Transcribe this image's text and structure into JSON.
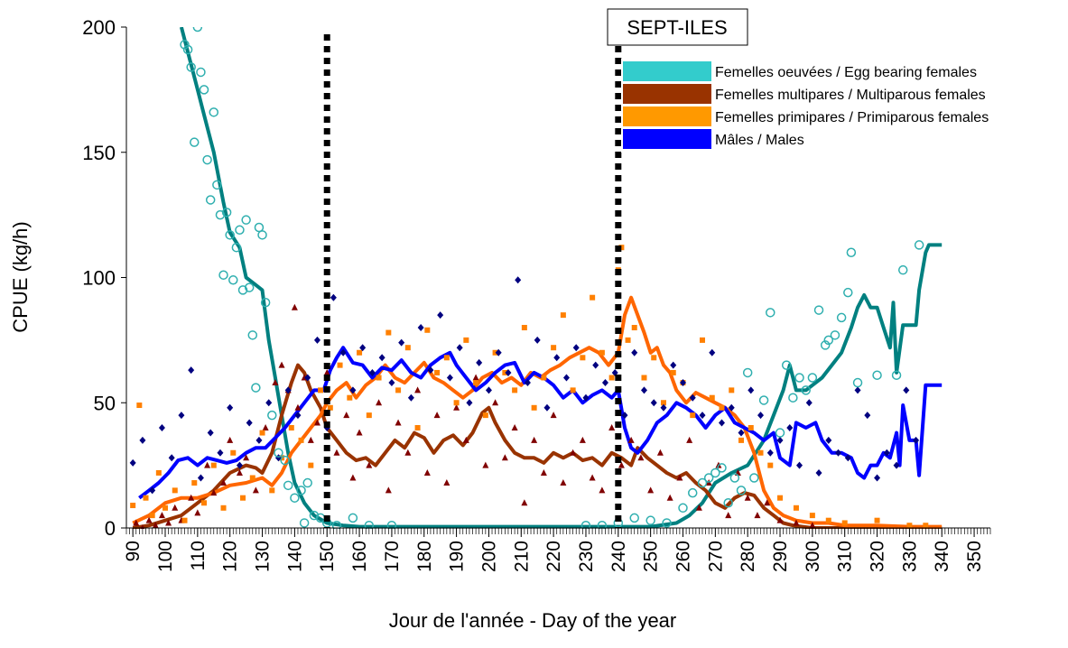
{
  "chart_data": {
    "type": "scatter",
    "title": "SEPT-ILES",
    "x_label": "Jour de l'année - Day of the year",
    "y_label": "CPUE (kg/h)",
    "xlim": [
      88,
      355
    ],
    "ylim": [
      0,
      200
    ],
    "xticks": [
      90,
      100,
      110,
      120,
      130,
      140,
      150,
      160,
      170,
      180,
      190,
      200,
      210,
      220,
      230,
      240,
      250,
      260,
      270,
      280,
      290,
      300,
      310,
      320,
      330,
      340,
      350
    ],
    "xminor": 1,
    "yticks": [
      0,
      50,
      100,
      150,
      200
    ],
    "vlines": [
      150,
      240
    ],
    "legend": "top right",
    "series": [
      {
        "name": "Femelles oeuvées / Egg bearing females",
        "color": "#33CCCC",
        "marker": "circle",
        "marker_color": "#2FAFAF",
        "line_color": "#008080",
        "x": [
          106,
          107,
          108,
          109,
          110,
          111,
          112,
          113,
          114,
          115,
          116,
          117,
          118,
          119,
          120,
          121,
          122,
          123,
          124,
          125,
          126,
          127,
          128,
          129,
          130,
          131,
          133,
          135,
          137,
          138,
          140,
          142,
          143,
          144,
          146,
          148,
          150,
          153,
          158,
          163,
          170,
          230,
          235,
          240,
          245,
          250,
          255,
          260,
          263,
          266,
          268,
          270,
          272,
          274,
          276,
          278,
          280,
          282,
          285,
          287,
          290,
          292,
          294,
          296,
          298,
          300,
          302,
          304,
          305,
          307,
          309,
          311,
          312,
          314,
          320,
          326,
          328,
          333
        ],
        "values": [
          193,
          191,
          184,
          154,
          200,
          182,
          175,
          147,
          131,
          166,
          137,
          125,
          101,
          126,
          117,
          99,
          112,
          119,
          95,
          123,
          96,
          77,
          56,
          120,
          117,
          90,
          45,
          30,
          27,
          17,
          12,
          15,
          2,
          18,
          5,
          4,
          2,
          1,
          4,
          1,
          1,
          1,
          1,
          2,
          4,
          3,
          2,
          8,
          14,
          18,
          20,
          22,
          24,
          10,
          20,
          15,
          62,
          20,
          51,
          86,
          38,
          65,
          52,
          60,
          55,
          60,
          87,
          73,
          75,
          77,
          84,
          94,
          110,
          58,
          61,
          61,
          103,
          113
        ],
        "line_x": [
          105,
          110,
          112,
          115,
          118,
          120,
          123,
          125,
          128,
          130,
          132,
          134,
          136,
          138,
          140,
          143,
          146,
          150,
          155,
          160,
          170,
          240,
          250,
          258,
          262,
          266,
          270,
          275,
          280,
          285,
          288,
          291,
          293,
          295,
          298,
          300,
          303,
          306,
          309,
          312,
          314,
          316,
          318,
          320,
          322,
          324,
          325,
          326,
          328,
          332,
          333,
          335,
          336,
          340
        ],
        "line_values": [
          200,
          175,
          165,
          150,
          130,
          118,
          112,
          100,
          97,
          95,
          75,
          60,
          45,
          30,
          18,
          10,
          5,
          2,
          1,
          0.5,
          0.5,
          0.5,
          0.5,
          2,
          5,
          10,
          18,
          22,
          25,
          35,
          45,
          55,
          65,
          55,
          55,
          57,
          60,
          65,
          70,
          80,
          88,
          93,
          88,
          88,
          80,
          72,
          90,
          62,
          81,
          81,
          95,
          110,
          113,
          113
        ]
      },
      {
        "name": "Femelles multipares / Multiparous females",
        "color": "#993300",
        "marker": "triangle",
        "marker_color": "#800000",
        "line_color": "#993300",
        "x": [
          91,
          93,
          95,
          97,
          99,
          101,
          103,
          105,
          108,
          110,
          113,
          115,
          118,
          120,
          123,
          125,
          128,
          131,
          134,
          136,
          138,
          140,
          141,
          143,
          145,
          147,
          150,
          153,
          156,
          158,
          160,
          163,
          166,
          169,
          172,
          175,
          178,
          181,
          184,
          187,
          190,
          193,
          196,
          199,
          202,
          205,
          208,
          211,
          214,
          217,
          220,
          223,
          226,
          229,
          232,
          235,
          238,
          241,
          244,
          247,
          250,
          253,
          256,
          259,
          262,
          265,
          268,
          271,
          274,
          277,
          280,
          283,
          286,
          290,
          295,
          300
        ],
        "values": [
          2,
          0,
          3,
          1,
          5,
          2,
          8,
          3,
          12,
          6,
          25,
          14,
          18,
          35,
          22,
          28,
          15,
          40,
          58,
          65,
          55,
          88,
          48,
          60,
          35,
          42,
          62,
          30,
          45,
          20,
          38,
          25,
          50,
          15,
          42,
          30,
          55,
          22,
          45,
          18,
          48,
          35,
          60,
          25,
          50,
          28,
          40,
          10,
          35,
          22,
          45,
          18,
          30,
          35,
          20,
          15,
          40,
          25,
          35,
          28,
          15,
          30,
          12,
          20,
          35,
          8,
          18,
          25,
          5,
          22,
          12,
          5,
          10,
          3,
          2,
          1
        ],
        "line_x": [
          90,
          95,
          100,
          105,
          110,
          115,
          120,
          125,
          128,
          130,
          133,
          136,
          139,
          141,
          143,
          145,
          148,
          150,
          153,
          156,
          159,
          162,
          165,
          168,
          171,
          174,
          177,
          180,
          183,
          186,
          189,
          192,
          195,
          198,
          200,
          202,
          205,
          208,
          211,
          214,
          217,
          220,
          223,
          226,
          229,
          232,
          235,
          238,
          241,
          244,
          246,
          249,
          252,
          255,
          258,
          261,
          264,
          267,
          270,
          273,
          276,
          279,
          282,
          285,
          288,
          291,
          294,
          300,
          310,
          320,
          330,
          340
        ],
        "line_values": [
          0,
          1,
          3,
          5,
          10,
          15,
          22,
          25,
          24,
          22,
          30,
          45,
          58,
          65,
          62,
          55,
          48,
          40,
          35,
          30,
          27,
          28,
          25,
          30,
          35,
          32,
          38,
          36,
          30,
          35,
          37,
          33,
          38,
          46,
          48,
          42,
          35,
          30,
          28,
          28,
          26,
          30,
          28,
          30,
          27,
          28,
          25,
          30,
          28,
          25,
          32,
          28,
          25,
          22,
          20,
          22,
          18,
          15,
          10,
          8,
          12,
          14,
          13,
          8,
          5,
          2,
          1,
          0,
          0,
          0,
          0,
          0
        ]
      },
      {
        "name": "Femelles primipares / Primiparous females",
        "color": "#FF9900",
        "marker": "square",
        "marker_color": "#FF8000",
        "line_color": "#FF6600",
        "x": [
          90,
          92,
          94,
          96,
          98,
          100,
          103,
          106,
          109,
          112,
          115,
          118,
          121,
          124,
          127,
          130,
          133,
          136,
          139,
          142,
          145,
          148,
          151,
          154,
          157,
          160,
          163,
          166,
          169,
          172,
          175,
          178,
          181,
          184,
          187,
          190,
          193,
          196,
          199,
          202,
          205,
          208,
          211,
          214,
          217,
          220,
          223,
          226,
          229,
          232,
          235,
          238,
          240,
          241,
          243,
          245,
          248,
          251,
          254,
          257,
          260,
          263,
          266,
          269,
          272,
          275,
          278,
          281,
          284,
          287,
          290,
          295,
          300,
          305,
          310,
          320,
          330,
          335
        ],
        "values": [
          9,
          49,
          12,
          5,
          22,
          8,
          15,
          3,
          18,
          10,
          25,
          8,
          30,
          12,
          20,
          38,
          15,
          28,
          40,
          35,
          25,
          55,
          48,
          65,
          52,
          70,
          45,
          60,
          78,
          55,
          72,
          40,
          79,
          62,
          68,
          50,
          75,
          58,
          45,
          70,
          62,
          55,
          80,
          48,
          60,
          72,
          85,
          55,
          68,
          92,
          70,
          60,
          103,
          112,
          75,
          80,
          60,
          68,
          50,
          62,
          58,
          45,
          75,
          52,
          48,
          55,
          35,
          40,
          30,
          25,
          12,
          8,
          5,
          3,
          2,
          3,
          1,
          1
        ],
        "line_x": [
          90,
          95,
          100,
          105,
          110,
          115,
          120,
          125,
          130,
          133,
          136,
          139,
          142,
          145,
          148,
          150,
          153,
          156,
          159,
          162,
          165,
          168,
          171,
          174,
          177,
          180,
          183,
          186,
          189,
          192,
          195,
          198,
          201,
          204,
          207,
          210,
          213,
          216,
          219,
          222,
          225,
          228,
          231,
          234,
          237,
          240,
          242,
          244,
          246,
          248,
          250,
          252,
          254,
          256,
          258,
          261,
          264,
          267,
          270,
          273,
          276,
          279,
          282,
          285,
          288,
          291,
          295,
          300,
          305,
          310,
          320,
          330,
          340
        ],
        "line_values": [
          2,
          5,
          10,
          12,
          12,
          14,
          17,
          18,
          20,
          17,
          22,
          30,
          35,
          40,
          45,
          50,
          55,
          58,
          52,
          57,
          60,
          65,
          60,
          58,
          62,
          66,
          60,
          58,
          55,
          52,
          55,
          60,
          62,
          58,
          60,
          57,
          62,
          60,
          63,
          65,
          68,
          70,
          72,
          70,
          65,
          70,
          85,
          92,
          85,
          78,
          70,
          72,
          65,
          62,
          55,
          50,
          54,
          52,
          50,
          48,
          45,
          40,
          30,
          15,
          8,
          5,
          3,
          2,
          2,
          1,
          1,
          0.5,
          0.5
        ]
      },
      {
        "name": "Mâles / Males",
        "color": "#0000FF",
        "marker": "diamond",
        "marker_color": "#000080",
        "line_color": "#0000FF",
        "x": [
          90,
          93,
          96,
          99,
          102,
          105,
          108,
          111,
          114,
          117,
          120,
          123,
          126,
          129,
          132,
          135,
          138,
          141,
          144,
          147,
          150,
          152,
          155,
          158,
          161,
          164,
          167,
          170,
          173,
          176,
          179,
          182,
          185,
          188,
          191,
          194,
          197,
          200,
          203,
          206,
          209,
          212,
          215,
          218,
          221,
          224,
          227,
          230,
          233,
          236,
          239,
          242,
          245,
          248,
          251,
          254,
          257,
          260,
          263,
          266,
          269,
          272,
          275,
          278,
          281,
          284,
          287,
          290,
          293,
          296,
          299,
          302,
          305,
          308,
          311,
          314,
          317,
          320,
          323,
          326,
          329,
          332
        ],
        "values": [
          26,
          35,
          15,
          40,
          28,
          45,
          63,
          20,
          38,
          30,
          48,
          25,
          42,
          35,
          50,
          28,
          55,
          45,
          60,
          75,
          40,
          92,
          70,
          55,
          72,
          62,
          68,
          58,
          74,
          52,
          80,
          63,
          85,
          60,
          72,
          50,
          66,
          55,
          70,
          62,
          99,
          58,
          75,
          48,
          68,
          60,
          72,
          52,
          65,
          58,
          62,
          45,
          70,
          55,
          50,
          48,
          65,
          58,
          52,
          45,
          70,
          42,
          48,
          38,
          55,
          45,
          30,
          35,
          40,
          25,
          50,
          22,
          35,
          30,
          28,
          55,
          45,
          20,
          30,
          25,
          55,
          35
        ],
        "line_x": [
          92,
          95,
          98,
          101,
          104,
          107,
          110,
          113,
          116,
          119,
          122,
          125,
          128,
          131,
          134,
          137,
          140,
          143,
          146,
          149,
          151,
          153,
          155,
          158,
          161,
          164,
          167,
          170,
          173,
          176,
          179,
          182,
          185,
          188,
          190,
          193,
          196,
          199,
          202,
          205,
          208,
          211,
          214,
          217,
          220,
          223,
          226,
          229,
          232,
          235,
          238,
          240,
          242,
          244,
          246,
          249,
          252,
          255,
          258,
          261,
          264,
          267,
          270,
          273,
          276,
          279,
          282,
          285,
          288,
          290,
          293,
          295,
          298,
          301,
          303,
          306,
          309,
          312,
          314,
          316,
          318,
          320,
          322,
          324,
          326,
          327,
          328,
          330,
          332,
          333,
          335,
          340
        ],
        "line_values": [
          12,
          15,
          18,
          22,
          27,
          28,
          25,
          28,
          27,
          26,
          27,
          30,
          32,
          32,
          36,
          40,
          45,
          50,
          55,
          55,
          63,
          68,
          72,
          66,
          65,
          60,
          64,
          63,
          67,
          62,
          60,
          65,
          68,
          70,
          65,
          60,
          55,
          58,
          62,
          65,
          66,
          58,
          62,
          60,
          57,
          52,
          55,
          50,
          53,
          55,
          52,
          55,
          40,
          32,
          30,
          35,
          42,
          45,
          50,
          48,
          45,
          40,
          45,
          48,
          42,
          40,
          38,
          35,
          38,
          28,
          25,
          42,
          40,
          42,
          35,
          30,
          30,
          28,
          22,
          20,
          25,
          25,
          30,
          28,
          38,
          25,
          49,
          35,
          35,
          21,
          57,
          57
        ]
      }
    ]
  }
}
